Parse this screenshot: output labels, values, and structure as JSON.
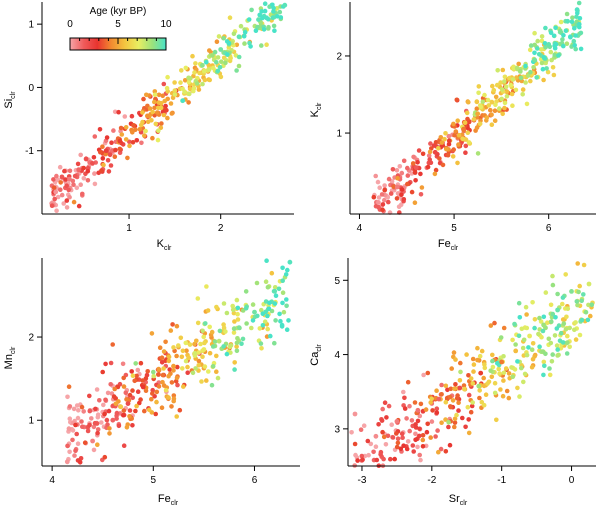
{
  "figure": {
    "colorbar": {
      "title": "Age (kyr BP)",
      "tick_labels": [
        "0",
        "5",
        "10"
      ],
      "range": [
        0,
        10
      ],
      "stops": [
        "#f6a5a8",
        "#ef5b5b",
        "#e8342f",
        "#f28a30",
        "#f4c540",
        "#e8ee62",
        "#9be27c",
        "#48e3c8"
      ]
    }
  },
  "chart_data": [
    {
      "type": "scatter",
      "id": "si_vs_k",
      "xlabel": "K",
      "xlabel_sub": "clr",
      "ylabel": "Si",
      "ylabel_sub": "clr",
      "xlim": [
        0.05,
        2.8
      ],
      "ylim": [
        -2.0,
        1.35
      ],
      "xticks": [
        1,
        2
      ],
      "yticks": [
        -1,
        0,
        1
      ],
      "trend": {
        "x_range": [
          0.15,
          2.7
        ],
        "slope": 1.22,
        "intercept": -1.93,
        "scatter": 0.17
      },
      "points": [
        {
          "x": 0.2,
          "y": -1.65,
          "age": 0.3
        },
        {
          "x": 0.35,
          "y": -1.45,
          "age": 0.8
        },
        {
          "x": 0.45,
          "y": -1.3,
          "age": 1.2
        },
        {
          "x": 0.6,
          "y": -1.2,
          "age": 1.8
        },
        {
          "x": 0.75,
          "y": -1.0,
          "age": 2.5
        },
        {
          "x": 0.9,
          "y": -0.85,
          "age": 3.0
        },
        {
          "x": 1.05,
          "y": -0.6,
          "age": 3.5
        },
        {
          "x": 1.2,
          "y": -0.45,
          "age": 4.5
        },
        {
          "x": 1.35,
          "y": -0.25,
          "age": 5.5
        },
        {
          "x": 1.5,
          "y": -0.05,
          "age": 6.5
        },
        {
          "x": 1.65,
          "y": 0.15,
          "age": 8.0
        },
        {
          "x": 1.8,
          "y": 0.35,
          "age": 8.8
        },
        {
          "x": 2.0,
          "y": 0.6,
          "age": 9.3
        },
        {
          "x": 2.2,
          "y": 0.8,
          "age": 9.6
        },
        {
          "x": 2.5,
          "y": 1.1,
          "age": 9.9
        },
        {
          "x": 2.7,
          "y": 1.3,
          "age": 9.7
        }
      ]
    },
    {
      "type": "scatter",
      "id": "k_vs_fe",
      "xlabel": "Fe",
      "xlabel_sub": "clr",
      "ylabel": "K",
      "ylabel_sub": "clr",
      "xlim": [
        3.9,
        6.5
      ],
      "ylim": [
        -0.05,
        2.7
      ],
      "xticks": [
        4,
        5,
        6
      ],
      "yticks": [
        1,
        2
      ],
      "trend": {
        "x_range": [
          4.15,
          6.35
        ],
        "slope": 1.1,
        "intercept": -4.55,
        "scatter": 0.15
      },
      "points": [
        {
          "x": 4.2,
          "y": 0.1,
          "age": 0.3
        },
        {
          "x": 4.4,
          "y": 0.3,
          "age": 0.8
        },
        {
          "x": 4.6,
          "y": 0.55,
          "age": 1.5
        },
        {
          "x": 4.8,
          "y": 0.75,
          "age": 2.2
        },
        {
          "x": 4.95,
          "y": 0.9,
          "age": 3.0
        },
        {
          "x": 5.1,
          "y": 1.05,
          "age": 4.0
        },
        {
          "x": 5.25,
          "y": 1.25,
          "age": 5.0
        },
        {
          "x": 5.4,
          "y": 1.4,
          "age": 6.0
        },
        {
          "x": 5.55,
          "y": 1.6,
          "age": 7.5
        },
        {
          "x": 5.7,
          "y": 1.8,
          "age": 8.5
        },
        {
          "x": 5.85,
          "y": 1.95,
          "age": 9.2
        },
        {
          "x": 6.0,
          "y": 2.15,
          "age": 9.5
        },
        {
          "x": 6.2,
          "y": 2.45,
          "age": 9.8
        },
        {
          "x": 6.3,
          "y": 2.6,
          "age": 9.9
        }
      ]
    },
    {
      "type": "scatter",
      "id": "mn_vs_fe",
      "xlabel": "Fe",
      "xlabel_sub": "clr",
      "ylabel": "Mn",
      "ylabel_sub": "clr",
      "xlim": [
        3.9,
        6.45
      ],
      "ylim": [
        0.45,
        2.95
      ],
      "xticks": [
        4,
        5,
        6
      ],
      "yticks": [
        1,
        2
      ],
      "trend": {
        "x_range": [
          4.15,
          6.35
        ],
        "slope": 0.75,
        "intercept": -2.3,
        "scatter": 0.24
      },
      "points": [
        {
          "x": 4.15,
          "y": 0.5,
          "age": 0.3
        },
        {
          "x": 4.4,
          "y": 0.75,
          "age": 0.7
        },
        {
          "x": 4.6,
          "y": 1.0,
          "age": 1.3
        },
        {
          "x": 4.75,
          "y": 1.2,
          "age": 2.0
        },
        {
          "x": 4.9,
          "y": 1.4,
          "age": 2.8
        },
        {
          "x": 5.05,
          "y": 1.55,
          "age": 3.5
        },
        {
          "x": 5.2,
          "y": 1.65,
          "age": 4.8
        },
        {
          "x": 5.35,
          "y": 1.75,
          "age": 6.0
        },
        {
          "x": 5.5,
          "y": 1.85,
          "age": 7.0
        },
        {
          "x": 5.65,
          "y": 1.95,
          "age": 8.0
        },
        {
          "x": 5.8,
          "y": 2.1,
          "age": 8.8
        },
        {
          "x": 6.0,
          "y": 2.3,
          "age": 9.3
        },
        {
          "x": 6.2,
          "y": 2.55,
          "age": 9.6
        },
        {
          "x": 6.35,
          "y": 2.9,
          "age": 9.8
        }
      ]
    },
    {
      "type": "scatter",
      "id": "ca_vs_sr",
      "xlabel": "Sr",
      "xlabel_sub": "clr",
      "ylabel": "Ca",
      "ylabel_sub": "clr",
      "xlim": [
        -3.2,
        0.35
      ],
      "ylim": [
        2.5,
        5.3
      ],
      "xticks": [
        -3,
        -2,
        -1,
        0
      ],
      "yticks": [
        3,
        4,
        5
      ],
      "trend": {
        "x_range": [
          -3.15,
          0.3
        ],
        "slope": 0.62,
        "intercept": 4.45,
        "scatter": 0.28
      },
      "points": [
        {
          "x": -3.1,
          "y": 3.2,
          "age": 0.3
        },
        {
          "x": -2.8,
          "y": 2.9,
          "age": 0.5
        },
        {
          "x": -2.5,
          "y": 3.1,
          "age": 0.8
        },
        {
          "x": -2.2,
          "y": 3.25,
          "age": 1.0
        },
        {
          "x": -1.9,
          "y": 3.4,
          "age": 1.3
        },
        {
          "x": -1.6,
          "y": 3.55,
          "age": 2.0
        },
        {
          "x": -1.3,
          "y": 3.75,
          "age": 3.0
        },
        {
          "x": -1.0,
          "y": 3.9,
          "age": 4.0
        },
        {
          "x": -0.8,
          "y": 4.05,
          "age": 5.5
        },
        {
          "x": -0.6,
          "y": 4.25,
          "age": 7.0
        },
        {
          "x": -0.4,
          "y": 4.4,
          "age": 8.5
        },
        {
          "x": -0.2,
          "y": 4.6,
          "age": 9.5
        },
        {
          "x": 0.0,
          "y": 4.85,
          "age": 9.0
        },
        {
          "x": 0.25,
          "y": 4.95,
          "age": 7.5
        }
      ]
    }
  ]
}
